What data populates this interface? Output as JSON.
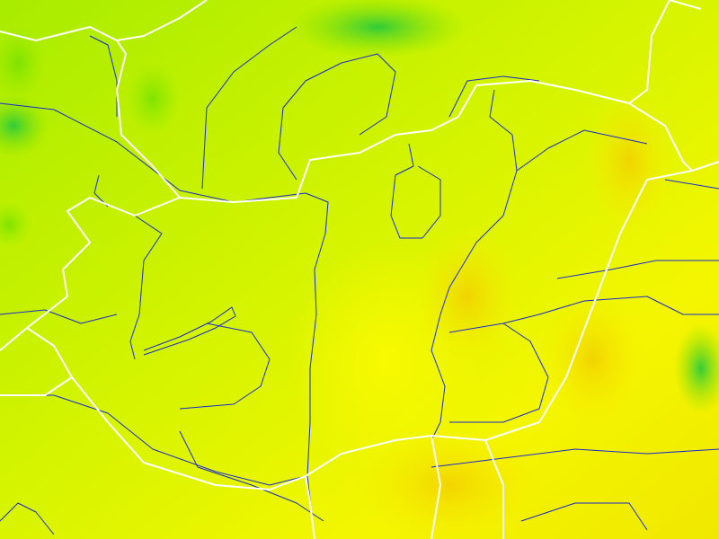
{
  "map": {
    "colors": {
      "low": "#9ae800",
      "mid": "#d4f400",
      "high": "#f8f800",
      "peak": "#f2d400",
      "dark_green": "#30d030",
      "border": "#ffffff",
      "river": "#1a2ad0"
    }
  }
}
